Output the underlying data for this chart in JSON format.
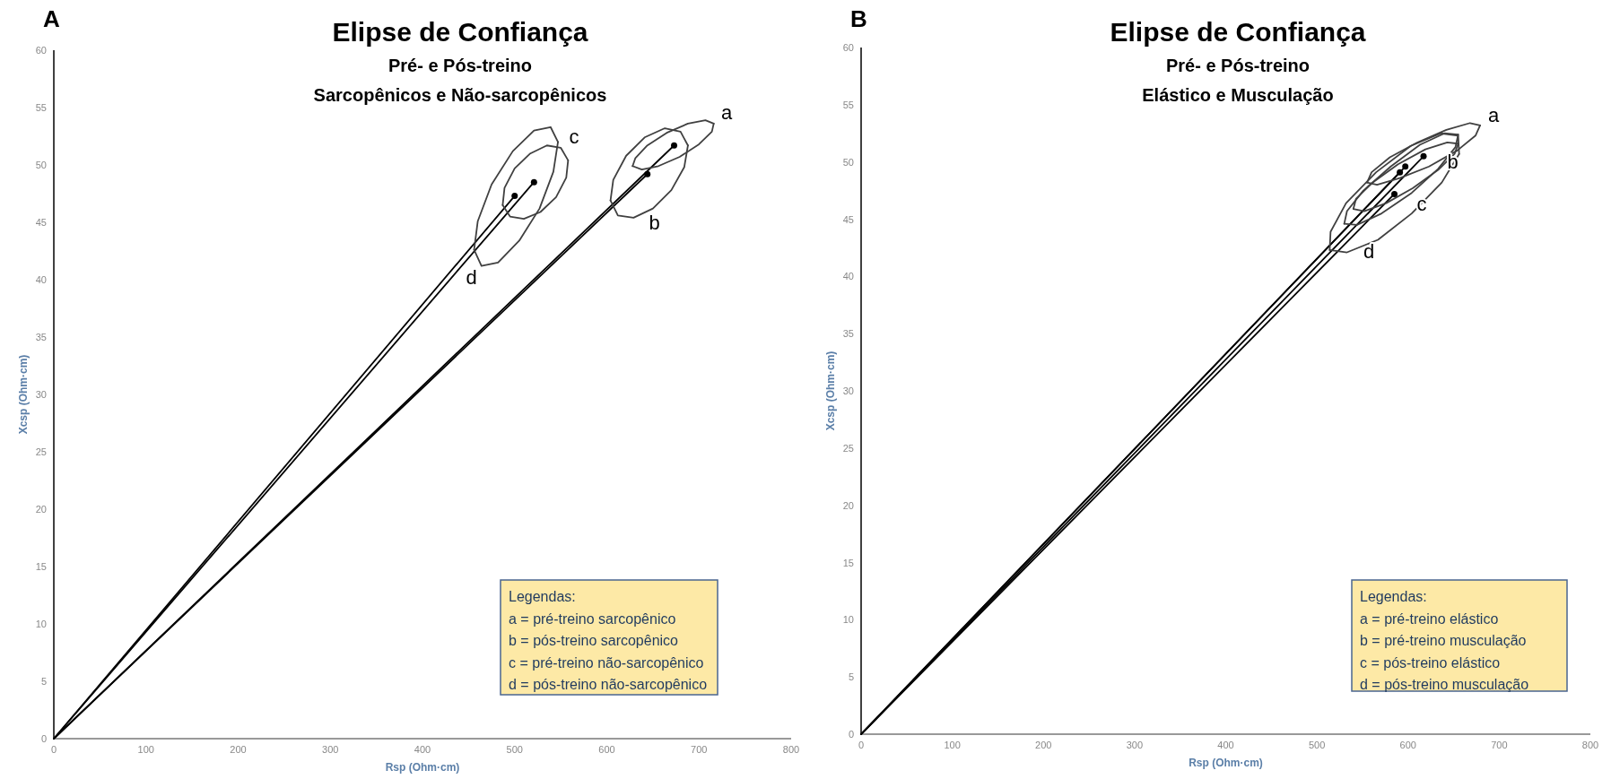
{
  "chart_data": [
    {
      "type": "line",
      "title": "Elipse de Confiança",
      "subtitle": "Pré- e Pós-treino\nSarcopênicos e Não-sarcopênicos",
      "xlabel": "Rsp (Ohm·cm)",
      "ylabel": "Xcsp (Ohm·cm)",
      "xlim": [
        0,
        800
      ],
      "xticks": [
        0,
        100,
        200,
        300,
        400,
        500,
        600,
        700,
        800
      ],
      "ylim": [
        0,
        60
      ],
      "yticks": [
        0,
        5,
        10,
        15,
        20,
        25,
        30,
        35,
        40,
        45,
        50,
        55,
        60
      ],
      "series": [
        {
          "type": "line",
          "color": "#000000",
          "x": [
            0,
            673
          ],
          "values": [
            0,
            51.7
          ]
        },
        {
          "type": "line",
          "color": "#000000",
          "x": [
            0,
            644
          ],
          "values": [
            0,
            49.2
          ]
        },
        {
          "type": "line",
          "color": "#000000",
          "x": [
            0,
            521
          ],
          "values": [
            0,
            48.5
          ]
        },
        {
          "type": "line",
          "color": "#000000",
          "x": [
            0,
            500
          ],
          "values": [
            0,
            47.3
          ]
        },
        {
          "type": "scatter",
          "color": "#000000",
          "x": [
            673,
            644,
            521,
            500
          ],
          "values": [
            51.7,
            49.2,
            48.5,
            47.3
          ]
        },
        {
          "type": "line",
          "color": "#404040",
          "x": [
            628,
            638,
            656,
            679,
            700,
            714,
            716
          ],
          "values": [
            49.9,
            49.6,
            49.9,
            50.7,
            51.8,
            52.9,
            53.6
          ]
        },
        {
          "type": "line",
          "color": "#404040",
          "x": [
            628,
            631,
            644,
            665,
            688,
            707,
            716
          ],
          "values": [
            49.9,
            50.6,
            51.7,
            52.8,
            53.6,
            53.9,
            53.6
          ]
        },
        {
          "type": "line",
          "color": "#404040",
          "x": [
            604,
            612,
            629,
            650,
            670,
            684,
            688
          ],
          "values": [
            46.9,
            45.6,
            45.4,
            46.2,
            47.8,
            49.8,
            51.7
          ]
        },
        {
          "type": "line",
          "color": "#404040",
          "x": [
            604,
            607,
            621,
            641,
            663,
            680,
            688
          ],
          "values": [
            46.9,
            48.7,
            50.8,
            52.4,
            53.2,
            52.9,
            51.7
          ]
        },
        {
          "type": "line",
          "color": "#404040",
          "x": [
            487,
            495,
            510,
            528,
            545,
            556,
            558
          ],
          "values": [
            46.5,
            45.5,
            45.3,
            45.9,
            47.2,
            48.9,
            50.4
          ]
        },
        {
          "type": "line",
          "color": "#404040",
          "x": [
            487,
            489,
            500,
            517,
            535,
            550,
            558
          ],
          "values": [
            46.5,
            48.0,
            49.7,
            51.0,
            51.7,
            51.5,
            50.4
          ]
        },
        {
          "type": "line",
          "color": "#404040",
          "x": [
            456,
            464,
            482,
            505,
            527,
            542,
            547
          ],
          "values": [
            42.6,
            41.2,
            41.5,
            43.4,
            46.2,
            49.4,
            52.0
          ]
        },
        {
          "type": "line",
          "color": "#404040",
          "x": [
            456,
            460,
            475,
            498,
            521,
            539,
            547
          ],
          "values": [
            42.6,
            45.1,
            48.3,
            51.2,
            53.0,
            53.3,
            52.0
          ]
        }
      ],
      "annotations": [
        "A",
        "Legendas:",
        "a = pré-treino sarcopênico",
        "b = pós-treino sarcopênico",
        "c = pré-treino não-sarcopênico",
        "d = pós-treino não-sarcopênico",
        {
          "text": "a",
          "x": 716,
          "y": 53.6
        },
        {
          "text": "b",
          "x": 650,
          "y": 46.2
        },
        {
          "text": "c",
          "x": 550,
          "y": 51.5
        },
        {
          "text": "d",
          "x": 464,
          "y": 41.2
        }
      ]
    },
    {
      "type": "line",
      "title": "Elipse de Confiança",
      "subtitle": "Pré- e Pós-treino\nElástico e Musculação",
      "xlabel": "Rsp (Ohm·cm)",
      "ylabel": "Xcsp (Ohm·cm)",
      "xlim": [
        0,
        800
      ],
      "xticks": [
        0,
        100,
        200,
        300,
        400,
        500,
        600,
        700,
        800
      ],
      "ylim": [
        0,
        60
      ],
      "yticks": [
        0,
        5,
        10,
        15,
        20,
        25,
        30,
        35,
        40,
        45,
        50,
        55,
        60
      ],
      "series": [
        {
          "type": "line",
          "color": "#000000",
          "x": [
            0,
            617
          ],
          "values": [
            0,
            50.5
          ]
        },
        {
          "type": "line",
          "color": "#000000",
          "x": [
            0,
            591
          ],
          "values": [
            0,
            49.1
          ]
        },
        {
          "type": "line",
          "color": "#000000",
          "x": [
            0,
            597
          ],
          "values": [
            0,
            49.6
          ]
        },
        {
          "type": "line",
          "color": "#000000",
          "x": [
            0,
            585
          ],
          "values": [
            0,
            47.2
          ]
        },
        {
          "type": "scatter",
          "color": "#000000",
          "x": [
            617,
            591,
            597,
            585
          ],
          "values": [
            50.5,
            49.1,
            49.6,
            47.2
          ]
        },
        {
          "type": "line",
          "color": "#404040",
          "x": [
            555,
            566,
            591,
            623,
            654,
            674,
            679
          ],
          "values": [
            48.2,
            48.0,
            48.6,
            49.6,
            51.0,
            52.3,
            53.2
          ]
        },
        {
          "type": "line",
          "color": "#404040",
          "x": [
            555,
            560,
            580,
            610,
            642,
            668,
            679
          ],
          "values": [
            48.2,
            49.1,
            50.4,
            51.7,
            52.8,
            53.4,
            53.2
          ]
        },
        {
          "type": "line",
          "color": "#404040",
          "x": [
            540,
            552,
            576,
            605,
            633,
            651,
            655
          ],
          "values": [
            45.9,
            45.7,
            46.4,
            47.7,
            49.3,
            50.7,
            51.6
          ]
        },
        {
          "type": "line",
          "color": "#404040",
          "x": [
            540,
            543,
            561,
            589,
            619,
            643,
            655
          ],
          "values": [
            45.9,
            46.8,
            48.2,
            49.8,
            51.1,
            51.7,
            51.6
          ]
        },
        {
          "type": "line",
          "color": "#404040",
          "x": [
            530,
            544,
            571,
            604,
            633,
            652,
            655
          ],
          "values": [
            44.6,
            44.5,
            45.5,
            47.3,
            49.4,
            51.3,
            52.4
          ]
        },
        {
          "type": "line",
          "color": "#404040",
          "x": [
            530,
            533,
            551,
            581,
            613,
            640,
            655
          ],
          "values": [
            44.6,
            45.7,
            47.5,
            49.6,
            51.5,
            52.5,
            52.4
          ]
        },
        {
          "type": "line",
          "color": "#404040",
          "x": [
            514,
            533,
            567,
            604,
            637,
            656
          ],
          "values": [
            42.3,
            42.1,
            43.2,
            45.5,
            48.2,
            50.7
          ]
        },
        {
          "type": "line",
          "color": "#404040",
          "x": [
            514,
            515,
            532,
            565,
            603,
            636,
            655,
            656
          ],
          "values": [
            42.3,
            43.9,
            46.4,
            49.1,
            51.4,
            52.5,
            52.3,
            50.7
          ]
        }
      ],
      "annotations": [
        "B",
        "Legendas:",
        "a = pré-treino elástico",
        "b = pré-treino musculação",
        "c = pós-treino elástico",
        "d = pós-treino musculação",
        {
          "text": "a",
          "x": 679,
          "y": 53.2
        },
        {
          "text": "b",
          "x": 633,
          "y": 49.3
        },
        {
          "text": "c",
          "x": 604,
          "y": 47.3
        },
        {
          "text": "d",
          "x": 567,
          "y": 43.2
        }
      ]
    }
  ]
}
